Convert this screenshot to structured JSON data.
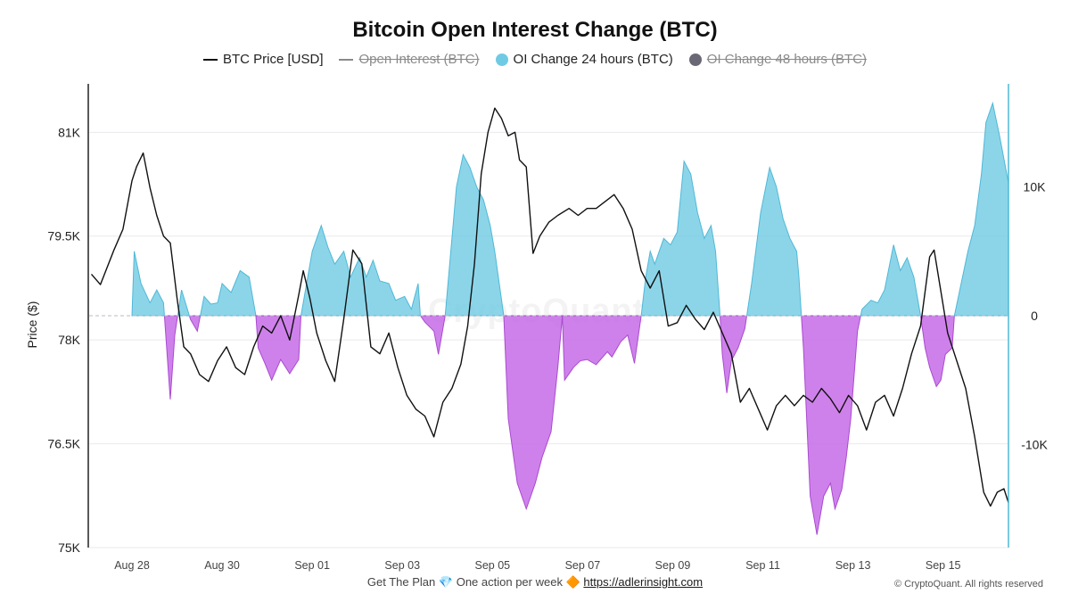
{
  "chart_data": {
    "type": "line",
    "title": "Bitcoin Open Interest Change (BTC)",
    "ylabel": "Price ($)",
    "ylim_left": [
      75000,
      81700
    ],
    "ylim_right": [
      -18000,
      18000
    ],
    "left_ticks": [
      "81K",
      "79.5K",
      "78K",
      "76.5K",
      "75K"
    ],
    "left_tick_values": [
      81000,
      79500,
      78000,
      76500,
      75000
    ],
    "right_ticks": [
      "10K",
      "0",
      "-10K"
    ],
    "right_tick_values": [
      10000,
      0,
      -10000
    ],
    "x_ticks": [
      "Aug 28",
      "Aug 30",
      "Sep 01",
      "Sep 03",
      "Sep 05",
      "Sep 07",
      "Sep 09",
      "Sep 11",
      "Sep 13",
      "Sep 15"
    ],
    "x_tick_day_index": [
      1,
      3,
      5,
      7,
      9,
      11,
      13,
      15,
      17,
      19
    ],
    "x_range_day_index": [
      0.05,
      20.45
    ],
    "legend_position": "top-center",
    "grid": "horizontal",
    "series": [
      {
        "name": "BTC Price [USD]",
        "axis": "left",
        "color": "#111111",
        "visible": true,
        "points": [
          [
            0.1,
            78950
          ],
          [
            0.3,
            78800
          ],
          [
            0.6,
            79300
          ],
          [
            0.8,
            79600
          ],
          [
            1.0,
            80300
          ],
          [
            1.1,
            80500
          ],
          [
            1.25,
            80700
          ],
          [
            1.4,
            80200
          ],
          [
            1.55,
            79800
          ],
          [
            1.7,
            79500
          ],
          [
            1.85,
            79400
          ],
          [
            2.0,
            78600
          ],
          [
            2.15,
            77900
          ],
          [
            2.3,
            77800
          ],
          [
            2.5,
            77500
          ],
          [
            2.7,
            77400
          ],
          [
            2.9,
            77700
          ],
          [
            3.1,
            77900
          ],
          [
            3.3,
            77600
          ],
          [
            3.5,
            77500
          ],
          [
            3.7,
            77900
          ],
          [
            3.9,
            78200
          ],
          [
            4.1,
            78100
          ],
          [
            4.3,
            78350
          ],
          [
            4.5,
            78000
          ],
          [
            4.7,
            78650
          ],
          [
            4.8,
            79000
          ],
          [
            4.95,
            78600
          ],
          [
            5.1,
            78100
          ],
          [
            5.3,
            77700
          ],
          [
            5.5,
            77400
          ],
          [
            5.7,
            78300
          ],
          [
            5.9,
            79300
          ],
          [
            6.1,
            79100
          ],
          [
            6.3,
            77900
          ],
          [
            6.5,
            77800
          ],
          [
            6.7,
            78100
          ],
          [
            6.9,
            77600
          ],
          [
            7.1,
            77200
          ],
          [
            7.3,
            77000
          ],
          [
            7.5,
            76900
          ],
          [
            7.7,
            76600
          ],
          [
            7.9,
            77100
          ],
          [
            8.1,
            77300
          ],
          [
            8.3,
            77650
          ],
          [
            8.45,
            78200
          ],
          [
            8.6,
            79100
          ],
          [
            8.75,
            80400
          ],
          [
            8.9,
            81000
          ],
          [
            9.05,
            81350
          ],
          [
            9.2,
            81200
          ],
          [
            9.35,
            80950
          ],
          [
            9.5,
            81000
          ],
          [
            9.6,
            80600
          ],
          [
            9.75,
            80500
          ],
          [
            9.9,
            79250
          ],
          [
            10.05,
            79500
          ],
          [
            10.25,
            79700
          ],
          [
            10.45,
            79800
          ],
          [
            10.7,
            79900
          ],
          [
            10.9,
            79800
          ],
          [
            11.1,
            79900
          ],
          [
            11.3,
            79900
          ],
          [
            11.5,
            80000
          ],
          [
            11.7,
            80100
          ],
          [
            11.9,
            79900
          ],
          [
            12.1,
            79600
          ],
          [
            12.3,
            79000
          ],
          [
            12.5,
            78750
          ],
          [
            12.7,
            79000
          ],
          [
            12.9,
            78200
          ],
          [
            13.1,
            78250
          ],
          [
            13.3,
            78500
          ],
          [
            13.5,
            78300
          ],
          [
            13.7,
            78150
          ],
          [
            13.9,
            78400
          ],
          [
            14.1,
            78100
          ],
          [
            14.3,
            77800
          ],
          [
            14.5,
            77100
          ],
          [
            14.7,
            77300
          ],
          [
            14.9,
            77000
          ],
          [
            15.1,
            76700
          ],
          [
            15.3,
            77050
          ],
          [
            15.5,
            77200
          ],
          [
            15.7,
            77050
          ],
          [
            15.9,
            77200
          ],
          [
            16.1,
            77100
          ],
          [
            16.3,
            77300
          ],
          [
            16.5,
            77150
          ],
          [
            16.7,
            76950
          ],
          [
            16.9,
            77200
          ],
          [
            17.1,
            77050
          ],
          [
            17.3,
            76700
          ],
          [
            17.5,
            77100
          ],
          [
            17.7,
            77200
          ],
          [
            17.9,
            76900
          ],
          [
            18.1,
            77300
          ],
          [
            18.3,
            77800
          ],
          [
            18.5,
            78200
          ],
          [
            18.7,
            79200
          ],
          [
            18.8,
            79300
          ],
          [
            18.95,
            78700
          ],
          [
            19.1,
            78100
          ],
          [
            19.3,
            77700
          ],
          [
            19.5,
            77300
          ],
          [
            19.7,
            76600
          ],
          [
            19.9,
            75800
          ],
          [
            20.05,
            75600
          ],
          [
            20.2,
            75800
          ],
          [
            20.35,
            75850
          ],
          [
            20.45,
            75650
          ]
        ]
      },
      {
        "name": "Open Interest (BTC)",
        "axis": "right",
        "color": "#8a8a8a",
        "visible": false
      },
      {
        "name": "OI Change 24 hours (BTC)",
        "axis": "right",
        "color": "#6fcbe3",
        "negative_color": "#c362e6",
        "visible": true,
        "points": [
          [
            1.0,
            0
          ],
          [
            1.05,
            5000
          ],
          [
            1.2,
            2500
          ],
          [
            1.4,
            1000
          ],
          [
            1.55,
            2000
          ],
          [
            1.7,
            1000
          ],
          [
            1.75,
            -1500
          ],
          [
            1.85,
            -6500
          ],
          [
            1.95,
            -1500
          ],
          [
            2.1,
            2000
          ],
          [
            2.3,
            -300
          ],
          [
            2.45,
            -1200
          ],
          [
            2.6,
            1500
          ],
          [
            2.75,
            900
          ],
          [
            2.9,
            1000
          ],
          [
            3.0,
            2500
          ],
          [
            3.2,
            1800
          ],
          [
            3.4,
            3500
          ],
          [
            3.6,
            3000
          ],
          [
            3.7,
            1000
          ],
          [
            3.75,
            0
          ],
          [
            3.8,
            -2500
          ],
          [
            3.95,
            -3700
          ],
          [
            4.1,
            -5000
          ],
          [
            4.3,
            -3400
          ],
          [
            4.5,
            -4500
          ],
          [
            4.7,
            -3400
          ],
          [
            4.75,
            0
          ],
          [
            4.8,
            1000
          ],
          [
            5.0,
            5000
          ],
          [
            5.2,
            7000
          ],
          [
            5.35,
            5300
          ],
          [
            5.5,
            4000
          ],
          [
            5.7,
            5000
          ],
          [
            5.85,
            3000
          ],
          [
            6.05,
            4500
          ],
          [
            6.2,
            3000
          ],
          [
            6.35,
            4300
          ],
          [
            6.5,
            2700
          ],
          [
            6.7,
            2500
          ],
          [
            6.85,
            1200
          ],
          [
            7.05,
            1500
          ],
          [
            7.2,
            500
          ],
          [
            7.35,
            2500
          ],
          [
            7.4,
            0
          ],
          [
            7.5,
            -500
          ],
          [
            7.7,
            -1200
          ],
          [
            7.8,
            -3000
          ],
          [
            7.95,
            0
          ],
          [
            8.1,
            6000
          ],
          [
            8.2,
            10000
          ],
          [
            8.35,
            12500
          ],
          [
            8.5,
            11500
          ],
          [
            8.65,
            10000
          ],
          [
            8.8,
            9000
          ],
          [
            8.95,
            7000
          ],
          [
            9.05,
            5000
          ],
          [
            9.25,
            0
          ],
          [
            9.35,
            -8000
          ],
          [
            9.55,
            -13000
          ],
          [
            9.75,
            -15000
          ],
          [
            9.95,
            -13000
          ],
          [
            10.1,
            -11000
          ],
          [
            10.3,
            -9000
          ],
          [
            10.45,
            -4000
          ],
          [
            10.55,
            0
          ],
          [
            10.6,
            -5000
          ],
          [
            10.8,
            -4000
          ],
          [
            10.95,
            -3500
          ],
          [
            11.1,
            -3400
          ],
          [
            11.3,
            -3800
          ],
          [
            11.55,
            -2800
          ],
          [
            11.65,
            -3200
          ],
          [
            11.85,
            -2000
          ],
          [
            12.0,
            -1500
          ],
          [
            12.15,
            -3700
          ],
          [
            12.3,
            0
          ],
          [
            12.4,
            3000
          ],
          [
            12.5,
            5000
          ],
          [
            12.6,
            4000
          ],
          [
            12.8,
            6000
          ],
          [
            12.95,
            5500
          ],
          [
            13.1,
            6500
          ],
          [
            13.25,
            12000
          ],
          [
            13.4,
            11000
          ],
          [
            13.55,
            8000
          ],
          [
            13.7,
            6000
          ],
          [
            13.85,
            7000
          ],
          [
            13.95,
            5000
          ],
          [
            14.05,
            0
          ],
          [
            14.1,
            -3000
          ],
          [
            14.2,
            -6000
          ],
          [
            14.3,
            -3500
          ],
          [
            14.45,
            -2500
          ],
          [
            14.6,
            -1000
          ],
          [
            14.75,
            2500
          ],
          [
            14.95,
            8000
          ],
          [
            15.15,
            11500
          ],
          [
            15.3,
            10000
          ],
          [
            15.45,
            7500
          ],
          [
            15.6,
            6000
          ],
          [
            15.75,
            5000
          ],
          [
            15.8,
            3000
          ],
          [
            15.9,
            -2500
          ],
          [
            16.05,
            -14000
          ],
          [
            16.2,
            -17000
          ],
          [
            16.35,
            -14000
          ],
          [
            16.5,
            -13000
          ],
          [
            16.6,
            -15000
          ],
          [
            16.75,
            -13500
          ],
          [
            16.85,
            -11000
          ],
          [
            16.95,
            -8000
          ],
          [
            17.1,
            -1200
          ],
          [
            17.2,
            500
          ],
          [
            17.4,
            1200
          ],
          [
            17.55,
            1000
          ],
          [
            17.7,
            2000
          ],
          [
            17.9,
            5500
          ],
          [
            18.05,
            3500
          ],
          [
            18.2,
            4500
          ],
          [
            18.35,
            3000
          ],
          [
            18.5,
            0
          ],
          [
            18.6,
            -2500
          ],
          [
            18.7,
            -4000
          ],
          [
            18.85,
            -5500
          ],
          [
            18.95,
            -5000
          ],
          [
            19.05,
            -3000
          ],
          [
            19.2,
            -2500
          ],
          [
            19.25,
            0
          ],
          [
            19.4,
            2500
          ],
          [
            19.55,
            5000
          ],
          [
            19.7,
            7000
          ],
          [
            19.85,
            11000
          ],
          [
            19.95,
            15000
          ],
          [
            20.1,
            16500
          ],
          [
            20.25,
            14000
          ],
          [
            20.45,
            10300
          ]
        ]
      },
      {
        "name": "OI Change 48 hours (BTC)",
        "axis": "right",
        "color": "#6b6875",
        "visible": false
      }
    ]
  },
  "footer": {
    "plan_text": "Get The Plan",
    "plan_icon": "💎",
    "action_text": "One action per week",
    "action_icon": "🔶",
    "link_text": "https://adlerinsight.com"
  },
  "copyright": "© CryptoQuant. All rights reserved",
  "watermark": "CryptoQuant"
}
